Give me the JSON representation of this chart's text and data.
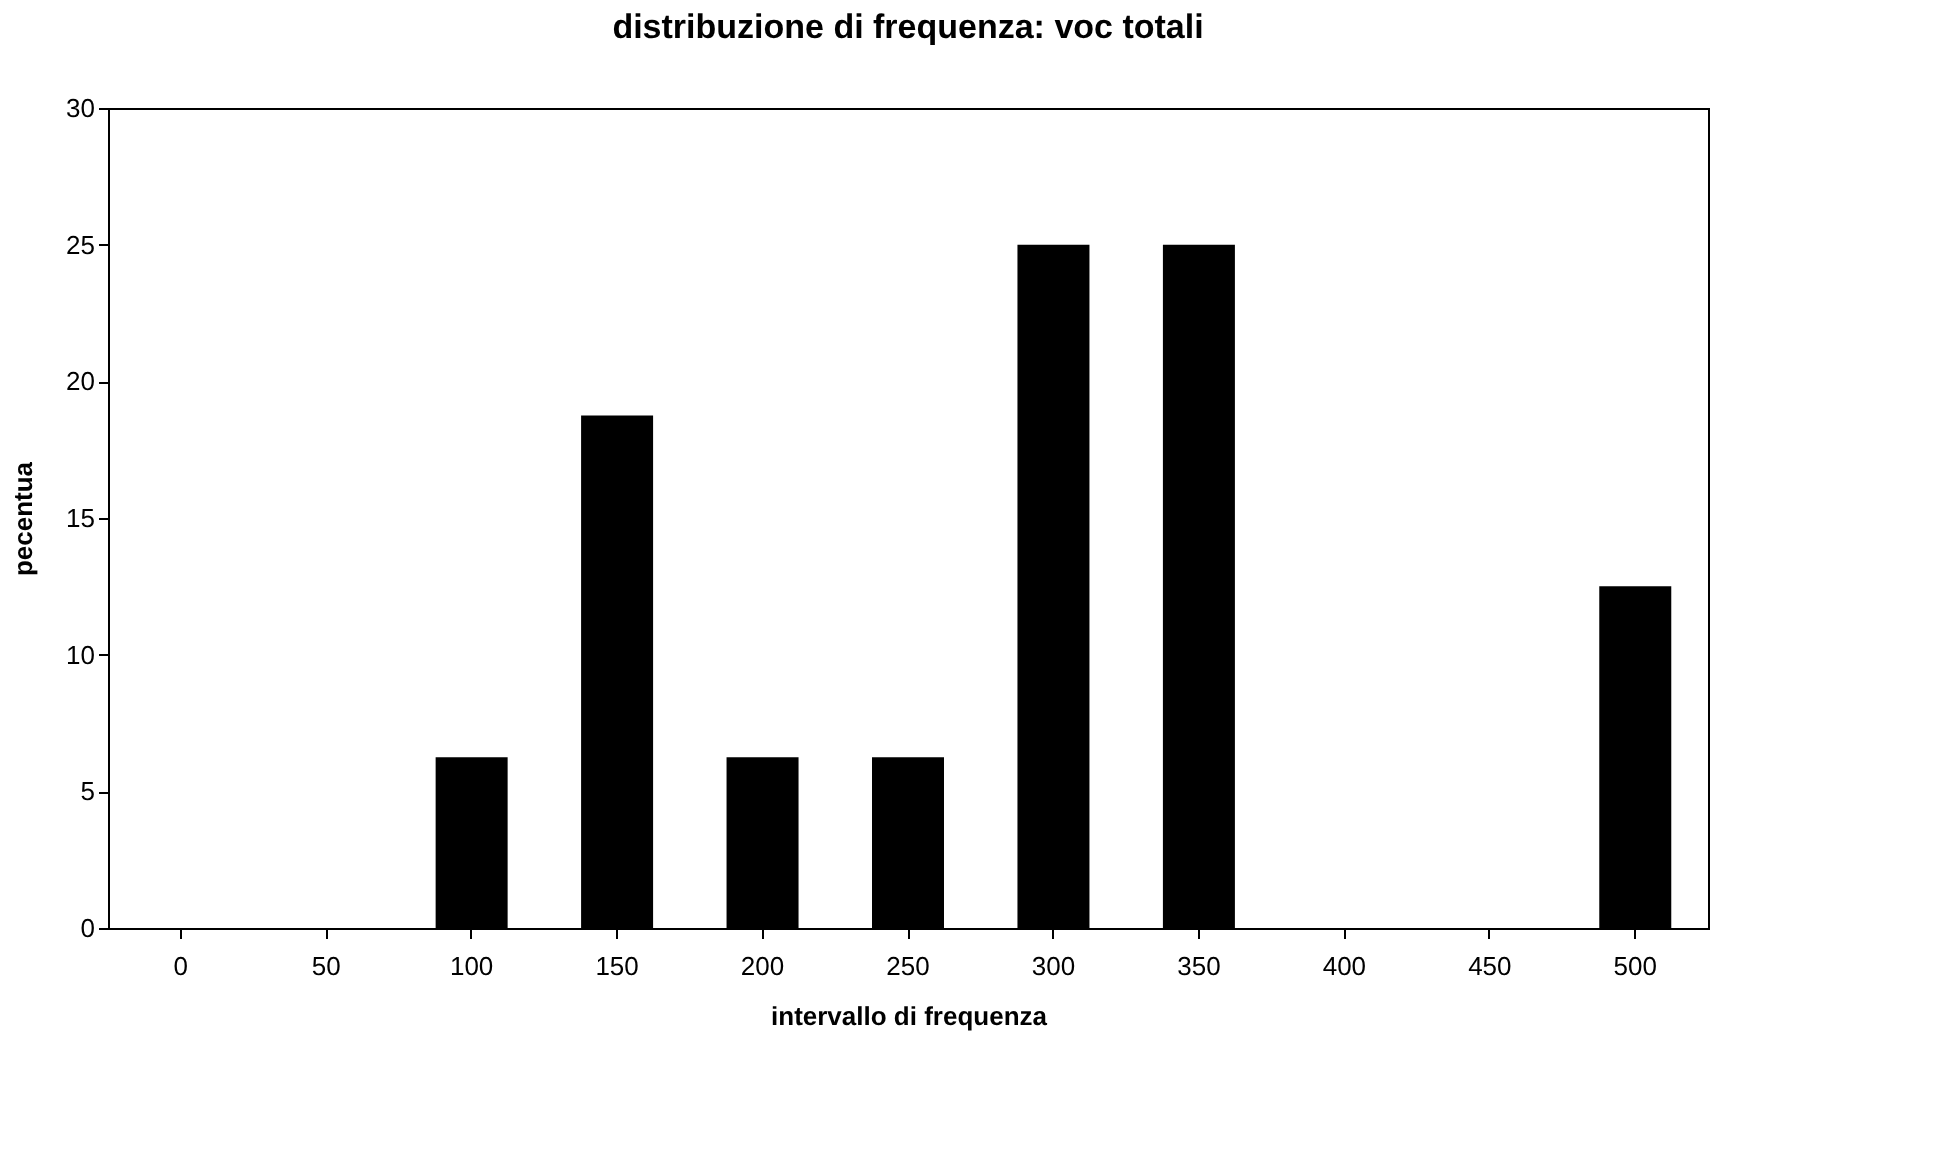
{
  "chart_data": {
    "type": "bar",
    "title": "distribuzione di frequenza: voc totali",
    "xlabel": "intervallo di frequenza",
    "ylabel": "pecentua",
    "categories": [
      "0",
      "50",
      "100",
      "150",
      "200",
      "250",
      "300",
      "350",
      "400",
      "450",
      "500"
    ],
    "values": [
      0,
      0,
      6.25,
      18.75,
      6.25,
      6.25,
      25,
      25,
      0,
      0,
      12.5
    ],
    "color": "#000000",
    "ylim": [
      0,
      30
    ],
    "yticks": [
      0,
      5,
      10,
      15,
      20,
      25,
      30
    ],
    "grid": false
  }
}
